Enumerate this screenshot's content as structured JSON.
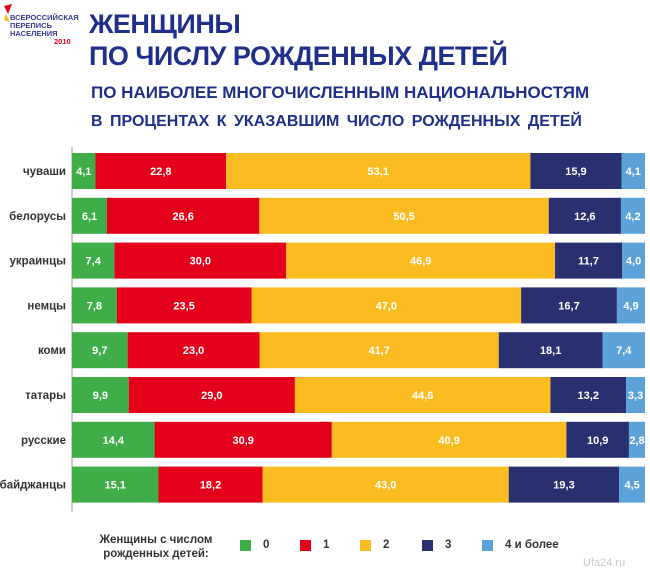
{
  "logo": {
    "line1": "ВСЕРОССИЙСКАЯ",
    "line2": "ПЕРЕПИСЬ",
    "line3": "НАСЕЛЕНИЯ",
    "year": "2010"
  },
  "watermark": "Ufa24.ru",
  "colors": {
    "0": "#3fae49",
    "1": "#e4001b",
    "2": "#fbbc22",
    "3": "#28306f",
    "4": "#5ca2d9",
    "title": "#1f2f8a"
  },
  "chart_data": {
    "type": "bar",
    "orientation": "horizontal",
    "stacked": true,
    "title": "ЖЕНЩИНЫ ПО ЧИСЛУ РОЖДЕННЫХ ДЕТЕЙ",
    "title_lines": [
      "ЖЕНЩИНЫ",
      "ПО ЧИСЛУ РОЖДЕННЫХ ДЕТЕЙ"
    ],
    "subtitle": "ПО НАИБОЛЕЕ МНОГОЧИСЛЕННЫМ НАЦИОНАЛЬНОСТЯМ",
    "subtitle2": "В ПРОЦЕНТАХ К УКАЗАВШИМ ЧИСЛО РОЖДЕННЫХ ДЕТЕЙ",
    "xlim": [
      0,
      100
    ],
    "grid": false,
    "legend_title": "Женщины с числом рожденных детей:",
    "legend_position": "bottom",
    "categories": [
      "чуваши",
      "белорусы",
      "украинцы",
      "немцы",
      "коми",
      "татары",
      "русские",
      "азербайджанцы"
    ],
    "series": [
      {
        "name": "0",
        "labels": [
          "4,1",
          "6,1",
          "7,4",
          "7,8",
          "9,7",
          "9,9",
          "14,4",
          "15,1"
        ],
        "values": [
          4.1,
          6.1,
          7.4,
          7.8,
          9.7,
          9.9,
          14.4,
          15.1
        ]
      },
      {
        "name": "1",
        "labels": [
          "22,8",
          "26,6",
          "30,0",
          "23,5",
          "23,0",
          "29,0",
          "30,9",
          "18,2"
        ],
        "values": [
          22.8,
          26.6,
          30.0,
          23.5,
          23.0,
          29.0,
          30.9,
          18.2
        ]
      },
      {
        "name": "2",
        "labels": [
          "53,1",
          "50,5",
          "46,9",
          "47,0",
          "41,7",
          "44,6",
          "40,9",
          "43,0"
        ],
        "values": [
          53.1,
          50.5,
          46.9,
          47.0,
          41.7,
          44.6,
          40.9,
          43.0
        ]
      },
      {
        "name": "3",
        "labels": [
          "15,9",
          "12,6",
          "11,7",
          "16,7",
          "18,1",
          "13,2",
          "10,9",
          "19,3"
        ],
        "values": [
          15.9,
          12.6,
          11.7,
          16.7,
          18.1,
          13.2,
          10.9,
          19.3
        ]
      },
      {
        "name": "4 и более",
        "labels": [
          "4,1",
          "4,2",
          "4,0",
          "4,9",
          "7,4",
          "3,3",
          "2,8",
          "4,5"
        ],
        "values": [
          4.1,
          4.2,
          4.0,
          4.9,
          7.4,
          3.3,
          2.8,
          4.5
        ]
      }
    ]
  }
}
